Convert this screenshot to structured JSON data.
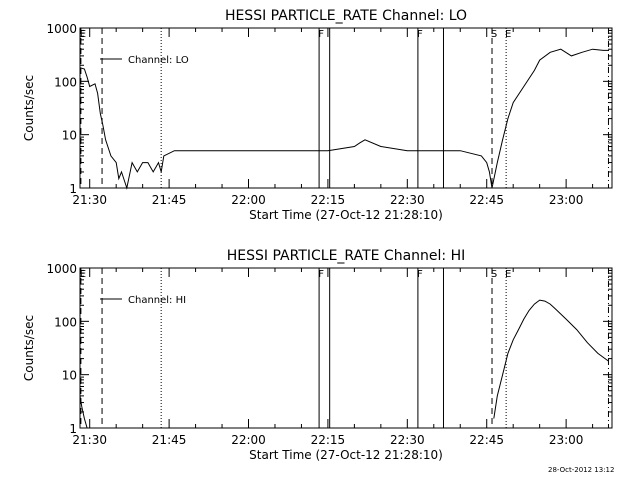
{
  "footer": {
    "timestamp": "28-Oct-2012 13:12"
  },
  "chart_data": [
    {
      "type": "line",
      "title": "HESSI PARTICLE_RATE Channel: LO",
      "xlabel": "Start Time (27-Oct-12 21:28:10)",
      "ylabel": "Counts/sec",
      "yscale": "log",
      "xlim": [
        "21:28:10",
        "23:08:40"
      ],
      "ylim": [
        1,
        1000
      ],
      "x_tick_labels": [
        "21:30",
        "21:45",
        "22:00",
        "22:15",
        "22:30",
        "22:45",
        "23:00"
      ],
      "y_tick_labels": [
        "1",
        "10",
        "100",
        "1000"
      ],
      "legend": "Channel: LO",
      "markers": [
        {
          "label": "E",
          "time": "21:28:20",
          "style": "dashed"
        },
        {
          "label": "",
          "time": "21:32:20",
          "style": "dashed"
        },
        {
          "label": "",
          "time": "21:43:30",
          "style": "dotted"
        },
        {
          "label": "F",
          "time": "22:13:20",
          "style": "solid"
        },
        {
          "label": "",
          "time": "22:15:20",
          "style": "solid"
        },
        {
          "label": "F",
          "time": "22:32:00",
          "style": "solid"
        },
        {
          "label": "",
          "time": "22:36:50",
          "style": "solid"
        },
        {
          "label": "S",
          "time": "22:46:00",
          "style": "dashed"
        },
        {
          "label": "E",
          "time": "22:48:40",
          "style": "dotted"
        },
        {
          "label": "",
          "time": "23:08:00",
          "style": "dashdot"
        }
      ],
      "series": [
        {
          "x": [
            "21:28:10",
            "21:29:00",
            "21:29:30",
            "21:30:00",
            "21:31:00",
            "21:31:30",
            "21:32:00",
            "21:32:30",
            "21:33:00",
            "21:34:00",
            "21:35:00",
            "21:35:30",
            "21:36:00",
            "21:37:00",
            "21:38:00",
            "21:39:00",
            "21:40:00",
            "21:41:00",
            "21:42:00",
            "21:43:00",
            "21:43:30",
            "21:44:00",
            "21:46:00",
            "21:50:00",
            "21:55:00",
            "22:00:00",
            "22:05:00",
            "22:10:00",
            "22:15:00",
            "22:20:00",
            "22:21:00",
            "22:22:00",
            "22:25:00",
            "22:30:00",
            "22:35:00",
            "22:40:00",
            "22:44:00",
            "22:45:00",
            "22:45:30",
            "22:46:00",
            "22:47:00",
            "22:48:00",
            "22:49:00",
            "22:50:00",
            "22:52:00",
            "22:54:00",
            "22:55:00",
            "22:57:00",
            "22:59:00",
            "23:01:00",
            "23:03:00",
            "23:05:00",
            "23:07:00",
            "23:08:00"
          ],
          "y": [
            180,
            170,
            120,
            80,
            90,
            60,
            25,
            15,
            8,
            4,
            3,
            1.5,
            2,
            1,
            3,
            2,
            3,
            3,
            2,
            3,
            2,
            4,
            5,
            5,
            5,
            5,
            5,
            5,
            5,
            6,
            7,
            8,
            6,
            5,
            5,
            5,
            4,
            3,
            2,
            1,
            3,
            8,
            20,
            40,
            80,
            160,
            250,
            350,
            400,
            300,
            350,
            400,
            380,
            380
          ]
        }
      ]
    },
    {
      "type": "line",
      "title": "HESSI PARTICLE_RATE Channel: HI",
      "xlabel": "Start Time (27-Oct-12 21:28:10)",
      "ylabel": "Counts/sec",
      "yscale": "log",
      "xlim": [
        "21:28:10",
        "23:08:40"
      ],
      "ylim": [
        1,
        1000
      ],
      "x_tick_labels": [
        "21:30",
        "21:45",
        "22:00",
        "22:15",
        "22:30",
        "22:45",
        "23:00"
      ],
      "y_tick_labels": [
        "1",
        "10",
        "100",
        "1000"
      ],
      "legend": "Channel: HI",
      "markers": [
        {
          "label": "E",
          "time": "21:28:20",
          "style": "dashed"
        },
        {
          "label": "",
          "time": "21:32:20",
          "style": "dashed"
        },
        {
          "label": "",
          "time": "21:43:30",
          "style": "dotted"
        },
        {
          "label": "F",
          "time": "22:13:20",
          "style": "solid"
        },
        {
          "label": "",
          "time": "22:15:20",
          "style": "solid"
        },
        {
          "label": "F",
          "time": "22:32:00",
          "style": "solid"
        },
        {
          "label": "",
          "time": "22:36:50",
          "style": "solid"
        },
        {
          "label": "S",
          "time": "22:46:00",
          "style": "dashed"
        },
        {
          "label": "E",
          "time": "22:48:40",
          "style": "dotted"
        },
        {
          "label": "",
          "time": "23:08:00",
          "style": "dashdot"
        }
      ],
      "series": [
        {
          "x": [
            "21:28:10",
            "21:28:30",
            "21:29:00",
            "21:29:30"
          ],
          "y": [
            4,
            2.5,
            1.5,
            1
          ]
        },
        {
          "x": [
            "22:46:20",
            "22:47:00",
            "22:48:00",
            "22:49:00",
            "22:50:00",
            "22:51:00",
            "22:52:00",
            "22:53:00",
            "22:54:00",
            "22:55:00",
            "22:56:00",
            "22:57:00",
            "22:58:00",
            "23:00:00",
            "23:02:00",
            "23:04:00",
            "23:06:00",
            "23:08:00"
          ],
          "y": [
            1.5,
            4,
            10,
            25,
            45,
            70,
            110,
            160,
            210,
            250,
            240,
            210,
            170,
            110,
            70,
            40,
            25,
            18
          ]
        }
      ]
    }
  ]
}
